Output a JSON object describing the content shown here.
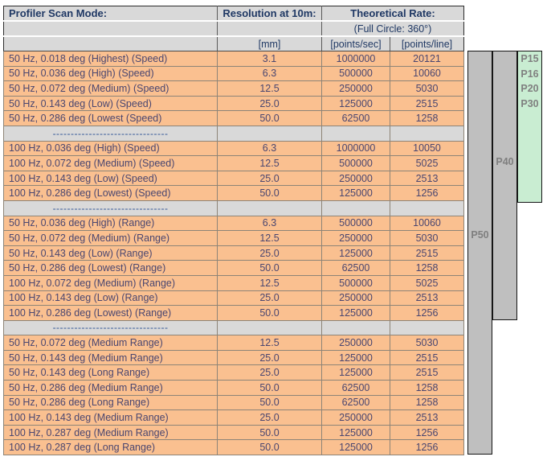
{
  "table": {
    "header": {
      "col_mode": "Profiler Scan Mode:",
      "col_resolution": "Resolution at 10m:",
      "col_rate": "Theoretical Rate:",
      "rate_subtitle": "(Full Circle: 360°)",
      "unit_mm": "[mm]",
      "unit_pps": "[points/sec]",
      "unit_ppl": "[points/line]"
    },
    "separator_dashes": "--------------------------------",
    "rows": [
      {
        "type": "data",
        "mode": "50 Hz, 0.018 deg (Highest) (Speed)",
        "mm": "3.1",
        "pps": "1000000",
        "ppl": "20121"
      },
      {
        "type": "data",
        "mode": "50 Hz, 0.036 deg (High) (Speed)",
        "mm": "6.3",
        "pps": "500000",
        "ppl": "10060"
      },
      {
        "type": "data",
        "mode": "50 Hz, 0.072 deg (Medium) (Speed)",
        "mm": "12.5",
        "pps": "250000",
        "ppl": "5030"
      },
      {
        "type": "data",
        "mode": "50 Hz, 0.143 deg (Low) (Speed)",
        "mm": "25.0",
        "pps": "125000",
        "ppl": "2515"
      },
      {
        "type": "data",
        "mode": "50 Hz, 0.286 deg (Lowest (Speed)",
        "mm": "50.0",
        "pps": "62500",
        "ppl": "1258"
      },
      {
        "type": "separator"
      },
      {
        "type": "data",
        "mode": "100 Hz, 0.036 deg (High) (Speed)",
        "mm": "6.3",
        "pps": "1000000",
        "ppl": "10050"
      },
      {
        "type": "data",
        "mode": "100 Hz, 0.072 deg (Medium) (Speed)",
        "mm": "12.5",
        "pps": "500000",
        "ppl": "5025"
      },
      {
        "type": "data",
        "mode": "100 Hz, 0.143 deg (Low) (Speed)",
        "mm": "25.0",
        "pps": "250000",
        "ppl": "2513"
      },
      {
        "type": "data",
        "mode": "100 Hz, 0.286 deg (Lowest) (Speed)",
        "mm": "50.0",
        "pps": "125000",
        "ppl": "1256"
      },
      {
        "type": "separator"
      },
      {
        "type": "data",
        "mode": "50 Hz, 0.036 deg (High) (Range)",
        "mm": "6.3",
        "pps": "500000",
        "ppl": "10060"
      },
      {
        "type": "data",
        "mode": "50 Hz, 0.072 deg (Medium) (Range)",
        "mm": "12.5",
        "pps": "250000",
        "ppl": "5030"
      },
      {
        "type": "data",
        "mode": "50 Hz, 0.143 deg (Low) (Range)",
        "mm": "25.0",
        "pps": "125000",
        "ppl": "2515"
      },
      {
        "type": "data",
        "mode": "50 Hz, 0.286 deg (Lowest) (Range)",
        "mm": "50.0",
        "pps": "62500",
        "ppl": "1258"
      },
      {
        "type": "data",
        "mode": "100 Hz, 0.072 deg (Medium) (Range)",
        "mm": "12.5",
        "pps": "500000",
        "ppl": "5025"
      },
      {
        "type": "data",
        "mode": "100 Hz, 0.143 deg (Low) (Range)",
        "mm": "25.0",
        "pps": "250000",
        "ppl": "2513"
      },
      {
        "type": "data",
        "mode": "100 Hz, 0.286 deg (Lowest) (Range)",
        "mm": "50.0",
        "pps": "125000",
        "ppl": "1256"
      },
      {
        "type": "separator"
      },
      {
        "type": "data",
        "mode": "50 Hz, 0.072 deg (Medium Range)",
        "mm": "12.5",
        "pps": "250000",
        "ppl": "5030"
      },
      {
        "type": "data",
        "mode": "50 Hz, 0.143 deg (Medium Range)",
        "mm": "25.0",
        "pps": "125000",
        "ppl": "2515"
      },
      {
        "type": "data",
        "mode": "50 Hz, 0.143 deg (Long Range)",
        "mm": "25.0",
        "pps": "125000",
        "ppl": "2515"
      },
      {
        "type": "data",
        "mode": "50 Hz, 0.286 deg (Medium Range)",
        "mm": "50.0",
        "pps": "62500",
        "ppl": "1258"
      },
      {
        "type": "data",
        "mode": "50 Hz, 0.286 deg (Long Range)",
        "mm": "50.0",
        "pps": "62500",
        "ppl": "1258"
      },
      {
        "type": "data",
        "mode": "100 Hz, 0.143 deg (Medium Range)",
        "mm": "25.0",
        "pps": "250000",
        "ppl": "2513"
      },
      {
        "type": "data",
        "mode": "100 Hz, 0.287 deg (Medium Range)",
        "mm": "50.0",
        "pps": "125000",
        "ppl": "1256"
      },
      {
        "type": "data",
        "mode": "100 Hz, 0.287 deg (Long Range)",
        "mm": "50.0",
        "pps": "125000",
        "ppl": "1256"
      }
    ]
  },
  "bars": {
    "p50": {
      "label": "P50"
    },
    "p40": {
      "label": "P40"
    },
    "green": {
      "labels": [
        "P15",
        "P16",
        "P20",
        "P30"
      ]
    }
  },
  "colors": {
    "header_bg": "#d9d9d9",
    "row_orange": "#fac090",
    "header_text": "#1f3864",
    "data_text": "#4a4670",
    "dash_color": "#2e5395",
    "bar_gray": "#bfbfbf",
    "bar_green": "#c9edd2",
    "bar_text": "#7f7f7f",
    "border_dark": "#2b2b2b"
  }
}
